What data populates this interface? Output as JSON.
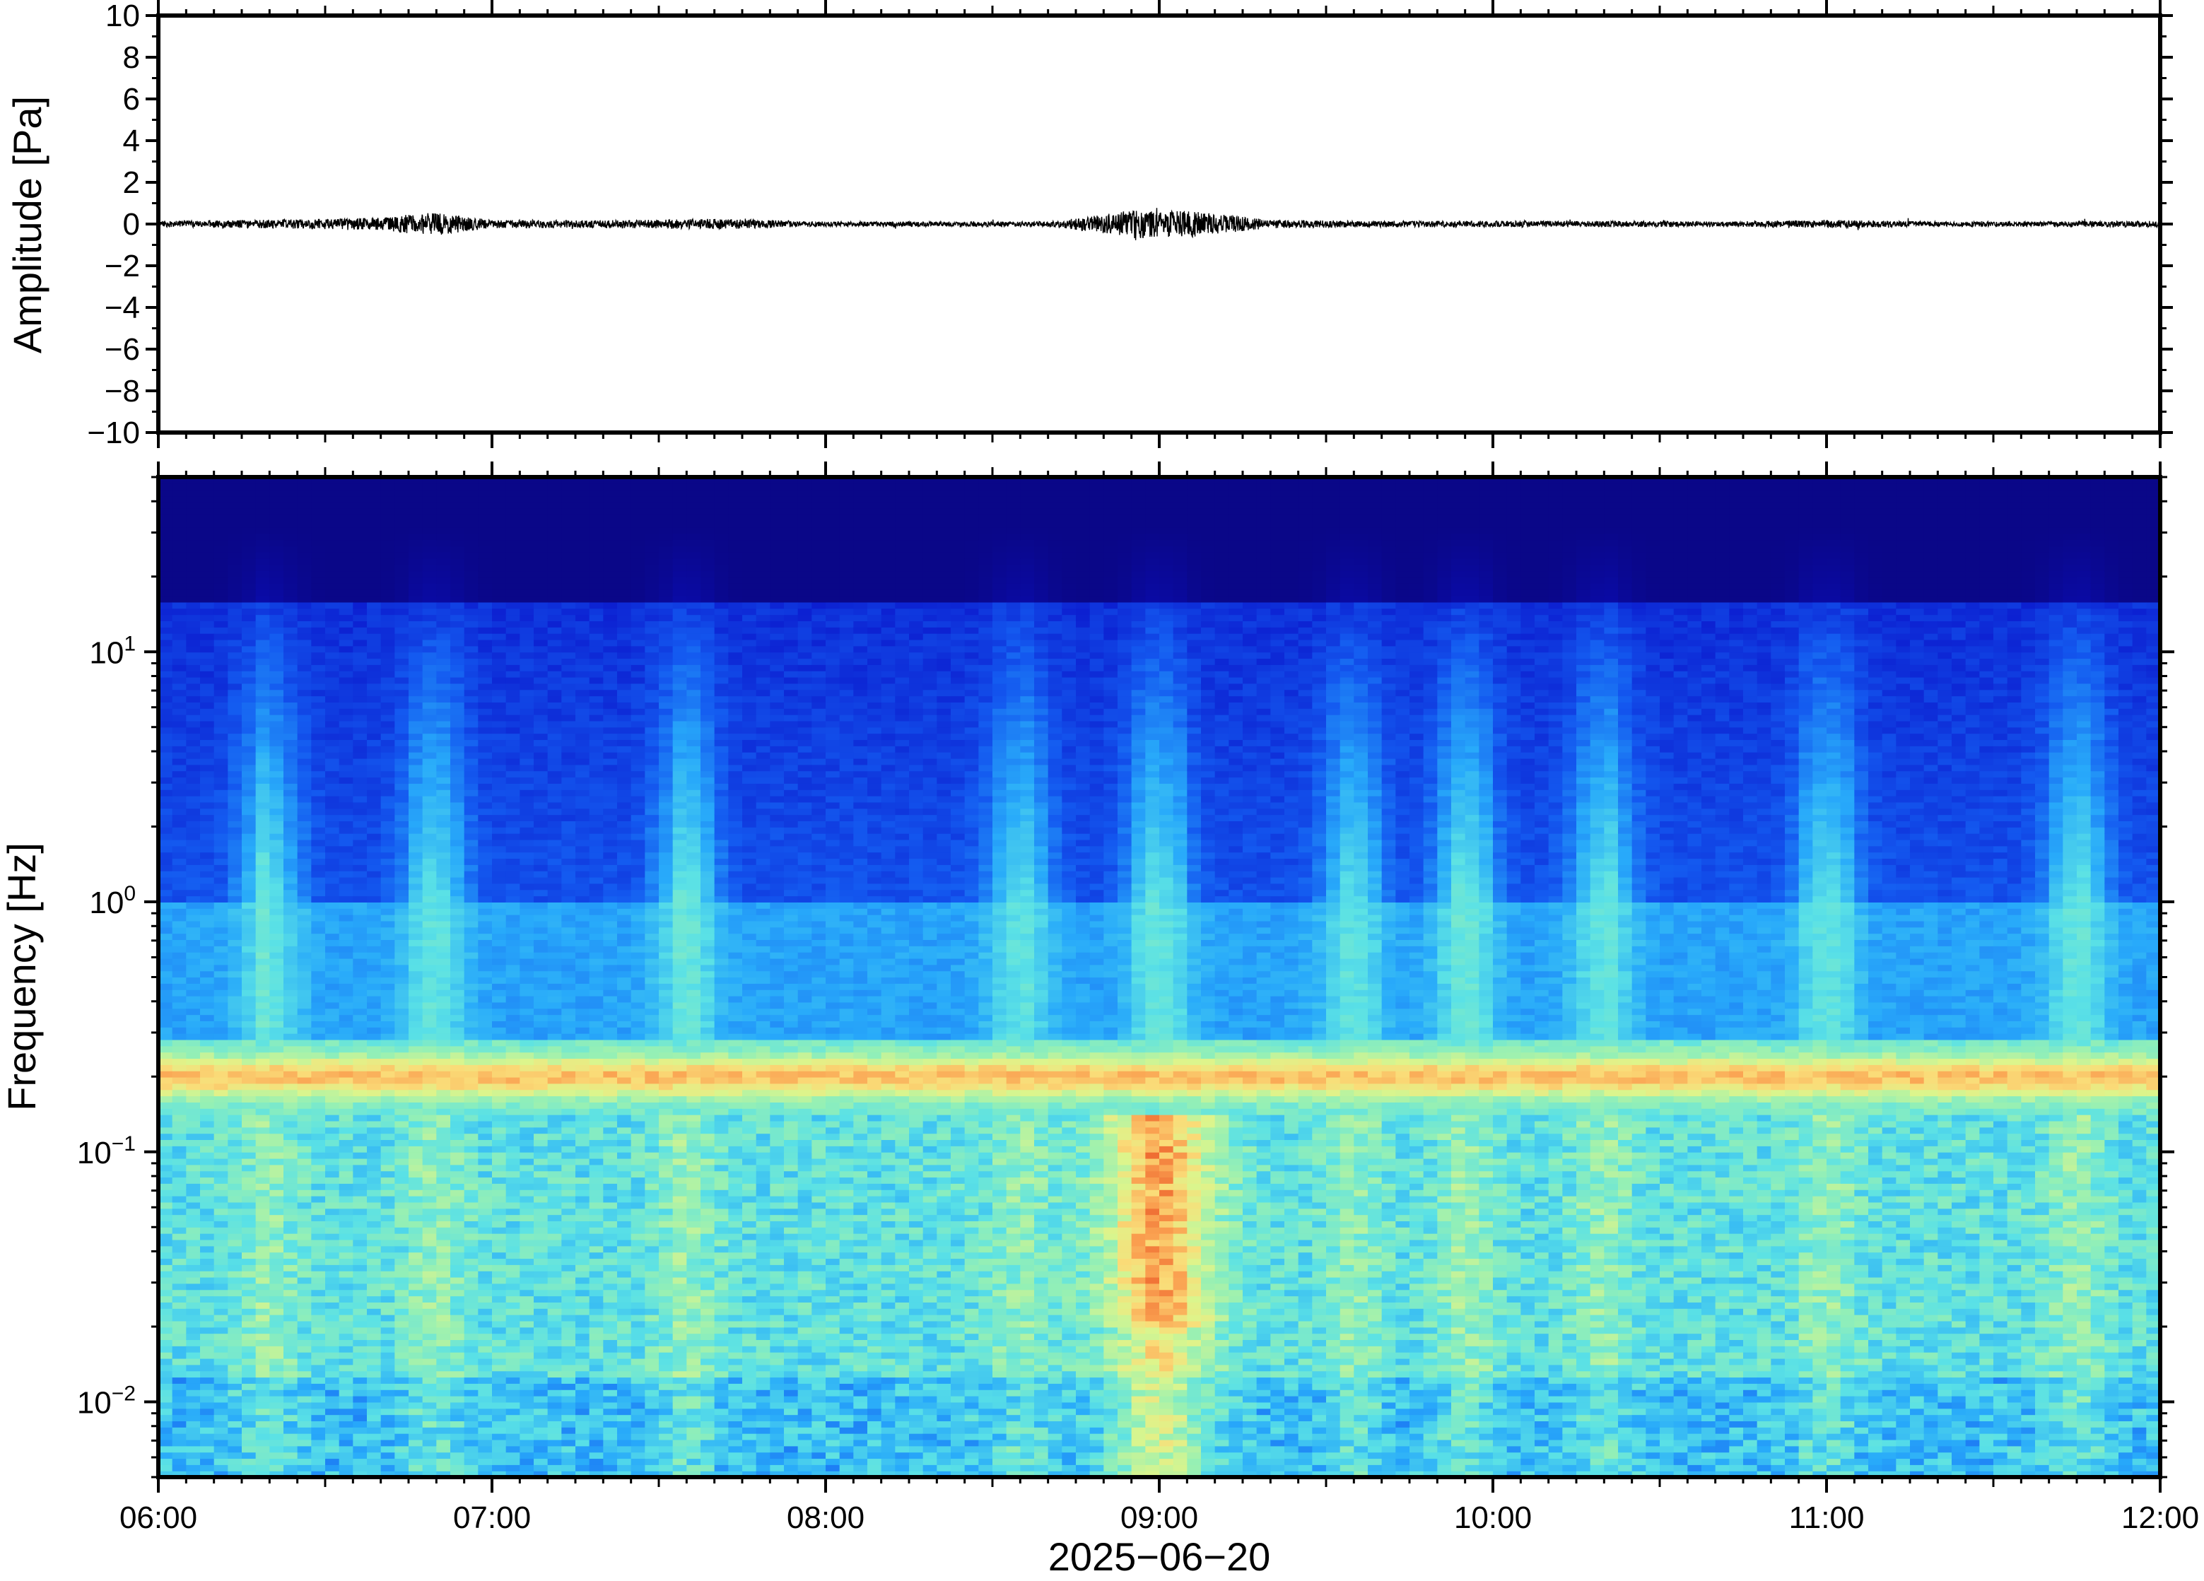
{
  "chart_data": [
    {
      "type": "line",
      "panel": "waveform",
      "ylabel": "Amplitude [Pa]",
      "ylim": [
        -10,
        10
      ],
      "yticks": [
        "10",
        "8",
        "6",
        "4",
        "2",
        "0",
        "−2",
        "−4",
        "−6",
        "−8",
        "−10"
      ],
      "ytick_values": [
        10,
        8,
        6,
        4,
        2,
        0,
        -2,
        -4,
        -6,
        -8,
        -10
      ],
      "series": [
        {
          "x_hours": [
            6.0,
            6.33,
            6.67,
            6.75,
            6.83,
            6.9,
            7.0,
            7.33,
            7.67,
            8.0,
            8.33,
            8.67,
            8.85,
            8.92,
            9.0,
            9.08,
            9.17,
            9.33,
            9.67,
            10.0,
            10.33,
            10.67,
            11.0,
            11.33,
            11.67,
            12.0
          ],
          "envelope_pa": [
            0.15,
            0.2,
            0.3,
            0.45,
            0.55,
            0.4,
            0.2,
            0.18,
            0.25,
            0.12,
            0.12,
            0.12,
            0.5,
            0.7,
            0.6,
            0.65,
            0.5,
            0.2,
            0.15,
            0.15,
            0.15,
            0.12,
            0.2,
            0.12,
            0.12,
            0.15
          ]
        }
      ]
    },
    {
      "type": "heatmap",
      "panel": "spectrogram",
      "ylabel": "Frequency [Hz]",
      "xlabel": "2025−06−20",
      "yscale": "log",
      "ylim_hz": [
        0.005,
        50
      ],
      "yticks": [
        {
          "base": "10",
          "exp": "1",
          "value": 10
        },
        {
          "base": "10",
          "exp": "0",
          "value": 1
        },
        {
          "base": "10",
          "exp": "−1",
          "value": 0.1
        },
        {
          "base": "10",
          "exp": "−2",
          "value": 0.01
        }
      ],
      "xticks": [
        "06:00",
        "07:00",
        "08:00",
        "09:00",
        "10:00",
        "11:00",
        "12:00"
      ],
      "xtick_hours": [
        6,
        7,
        8,
        9,
        10,
        11,
        12
      ],
      "xlim_hours": [
        6,
        12
      ],
      "colormap": "jet",
      "band_center_hz": 0.2,
      "activity_hours": [
        6.33,
        6.83,
        7.58,
        8.58,
        9.0,
        9.58,
        9.92,
        10.33,
        11.0,
        11.75
      ]
    }
  ]
}
